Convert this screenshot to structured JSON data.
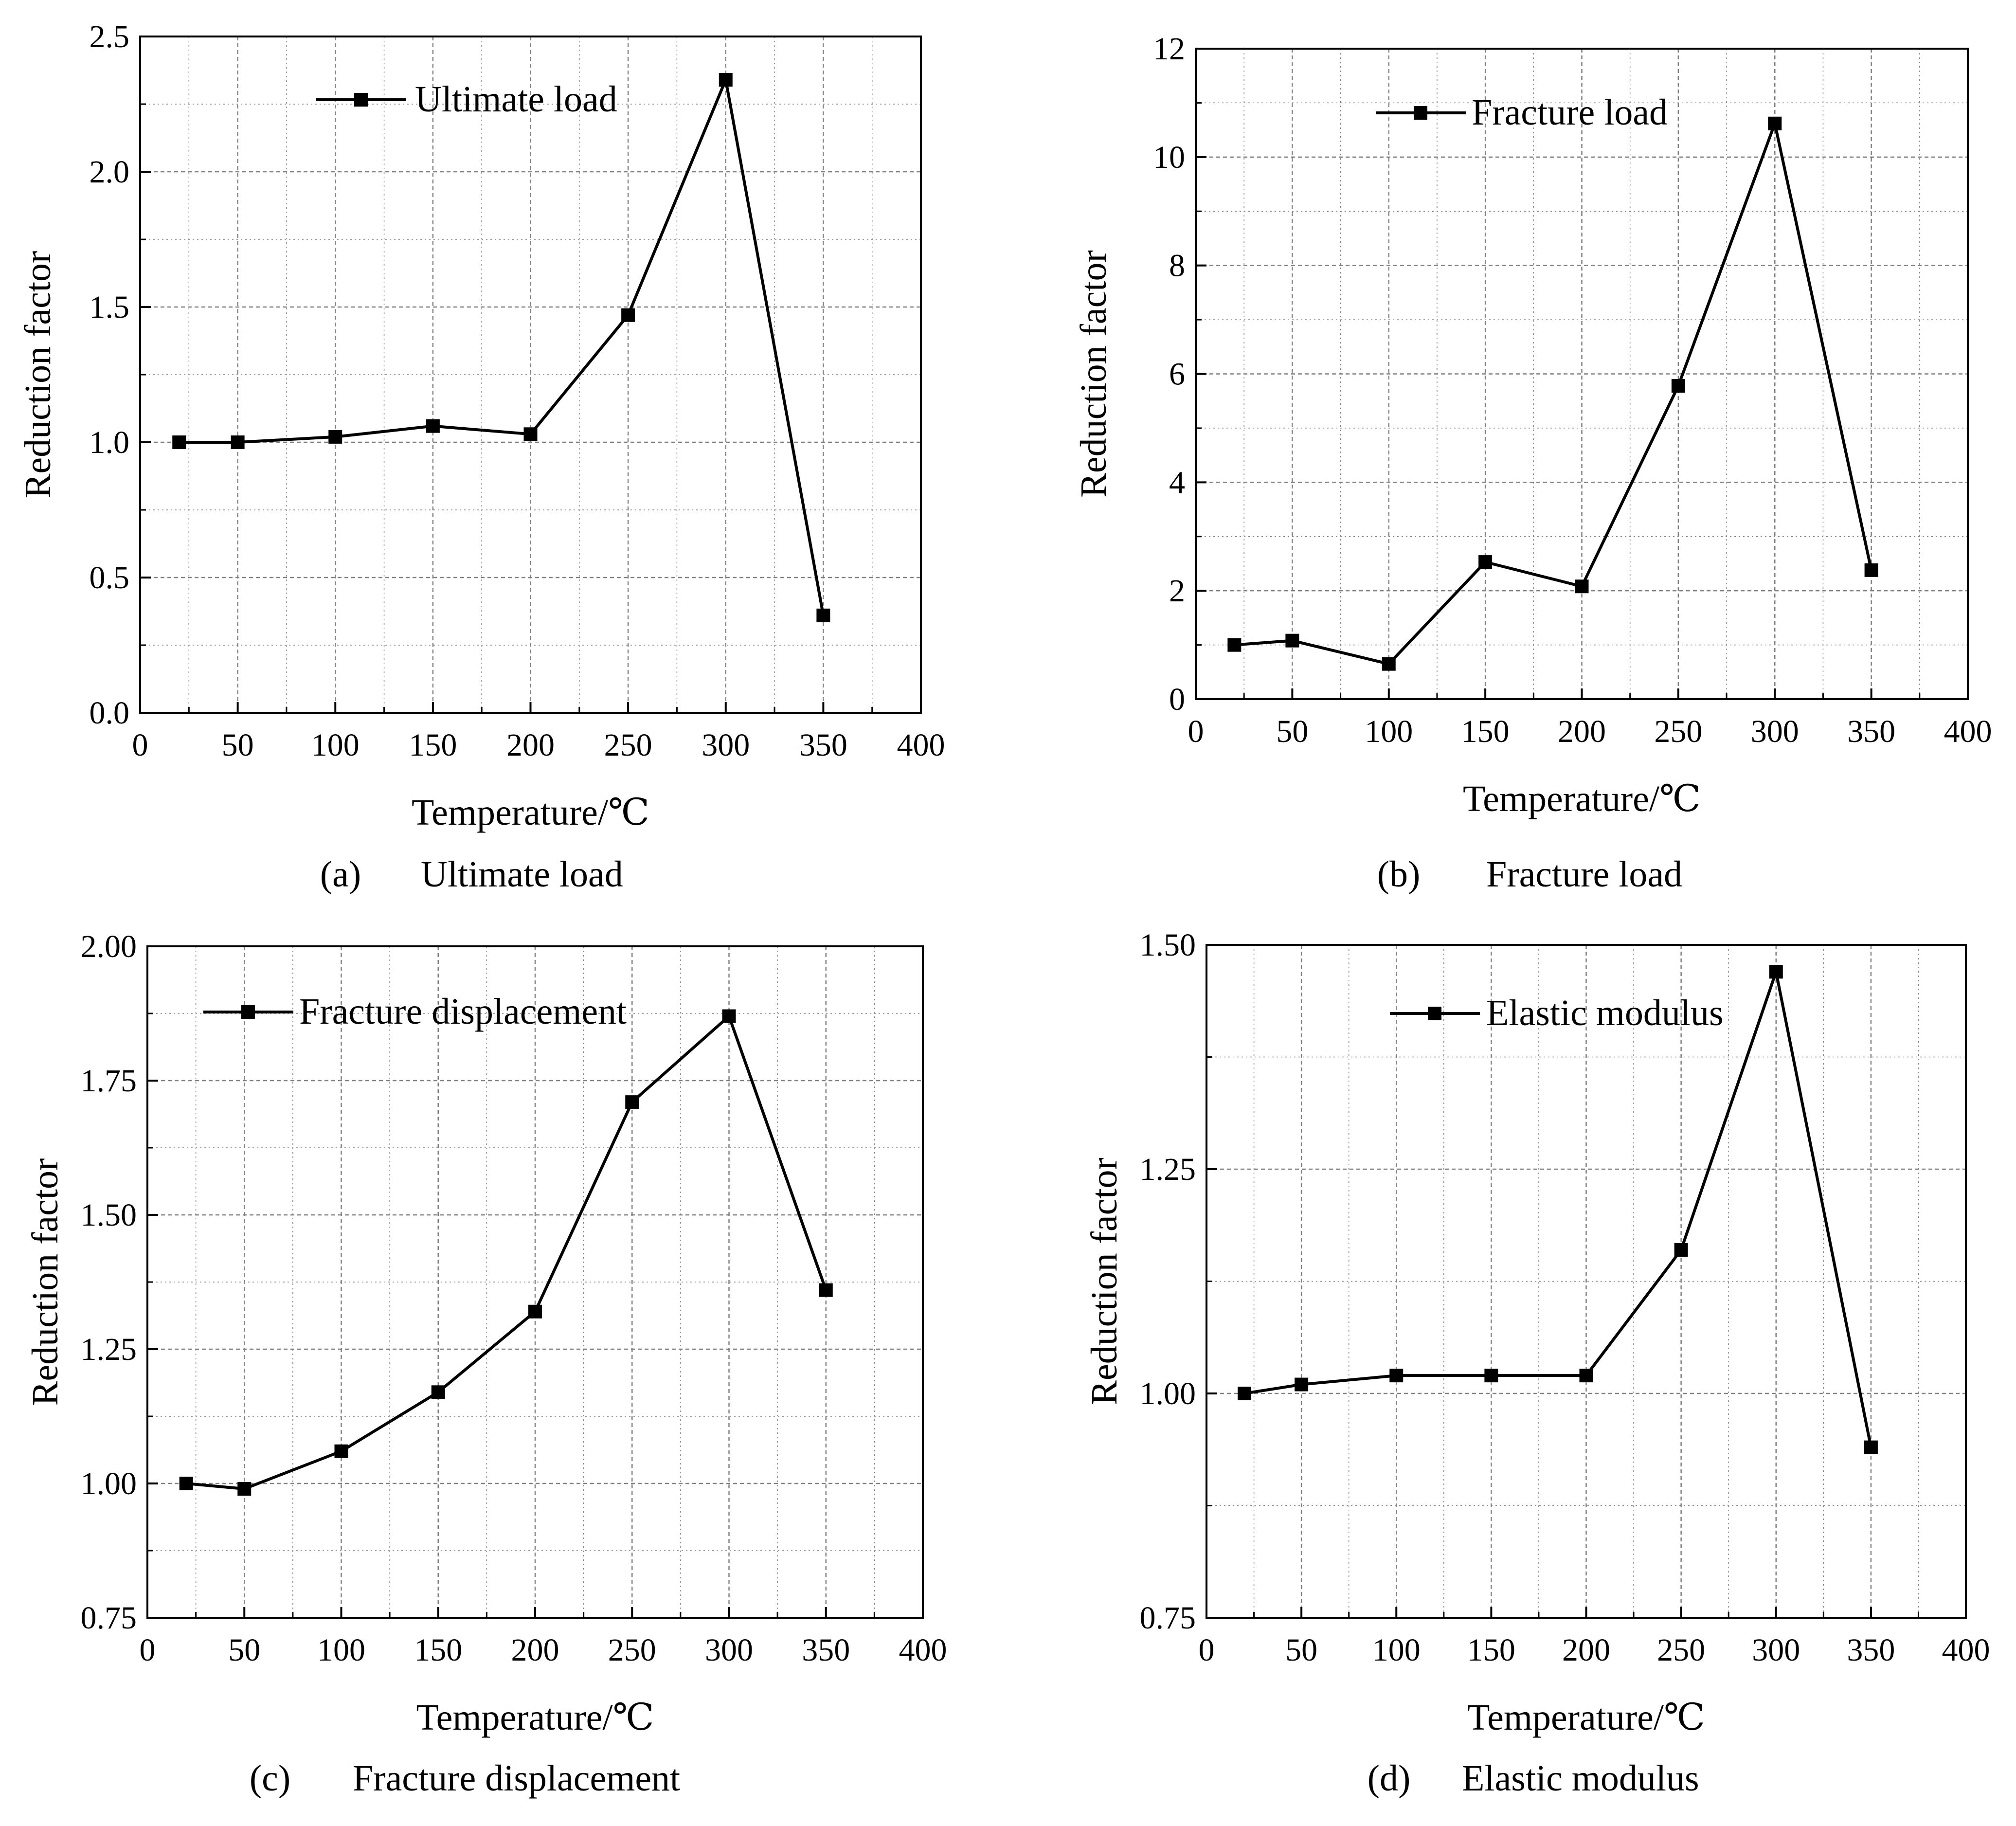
{
  "figure": {
    "colors": {
      "line": "#000000",
      "marker": "#000000",
      "grid": "#808080",
      "background": "#ffffff"
    }
  },
  "chart_data": [
    {
      "id": "a",
      "type": "line",
      "caption_label": "(a)",
      "caption_text": "Ultimate load",
      "xlabel": "Temperature/℃",
      "ylabel": "Reduction factor",
      "xlim": [
        0,
        400
      ],
      "ylim": [
        0,
        2.5
      ],
      "xticks": [
        "0",
        "50",
        "100",
        "150",
        "200",
        "250",
        "300",
        "350",
        "400"
      ],
      "yticks": [
        "0.0",
        "0.5",
        "1.0",
        "1.5",
        "2.0",
        "2.5"
      ],
      "grid": true,
      "legend_position": "top-left",
      "series": [
        {
          "name": "Ultimate load",
          "x": [
            20,
            50,
            100,
            150,
            200,
            250,
            300,
            350
          ],
          "y": [
            1.0,
            1.0,
            1.02,
            1.06,
            1.03,
            1.47,
            2.34,
            0.36
          ]
        }
      ]
    },
    {
      "id": "b",
      "type": "line",
      "caption_label": "(b)",
      "caption_text": "Fracture load",
      "xlabel": "Temperature/℃",
      "ylabel": "Reduction factor",
      "xlim": [
        0,
        400
      ],
      "ylim": [
        0,
        12
      ],
      "xticks": [
        "0",
        "50",
        "100",
        "150",
        "200",
        "250",
        "300",
        "350",
        "400"
      ],
      "yticks": [
        "0",
        "2",
        "4",
        "6",
        "8",
        "10",
        "12"
      ],
      "grid": true,
      "legend_position": "top-left",
      "series": [
        {
          "name": "Fracture load",
          "x": [
            20,
            50,
            100,
            150,
            200,
            250,
            300,
            350
          ],
          "y": [
            1.0,
            1.08,
            0.65,
            2.53,
            2.08,
            5.78,
            10.62,
            2.38
          ]
        }
      ]
    },
    {
      "id": "c",
      "type": "line",
      "caption_label": "(c)",
      "caption_text": "Fracture displacement",
      "xlabel": "Temperature/℃",
      "ylabel": "Reduction factor",
      "xlim": [
        0,
        400
      ],
      "ylim": [
        0.75,
        2.0
      ],
      "xticks": [
        "0",
        "50",
        "100",
        "150",
        "200",
        "250",
        "300",
        "350",
        "400"
      ],
      "yticks": [
        "0.75",
        "1.00",
        "1.25",
        "1.50",
        "1.75",
        "2.00"
      ],
      "grid": true,
      "legend_position": "top-left",
      "series": [
        {
          "name": "Fracture displacement",
          "x": [
            20,
            50,
            100,
            150,
            200,
            250,
            300,
            350
          ],
          "y": [
            1.0,
            0.99,
            1.06,
            1.17,
            1.32,
            1.71,
            1.87,
            1.36
          ]
        }
      ]
    },
    {
      "id": "d",
      "type": "line",
      "caption_label": "(d)",
      "caption_text": "Elastic modulus",
      "xlabel": "Temperature/℃",
      "ylabel": "Reduction factor",
      "xlim": [
        0,
        400
      ],
      "ylim": [
        0.75,
        1.5
      ],
      "xticks": [
        "0",
        "50",
        "100",
        "150",
        "200",
        "250",
        "300",
        "350",
        "400"
      ],
      "yticks": [
        "0.75",
        "1.00",
        "1.25",
        "1.50"
      ],
      "grid": true,
      "legend_position": "top-left",
      "series": [
        {
          "name": "Elastic modulus",
          "x": [
            20,
            50,
            100,
            150,
            200,
            250,
            300,
            350
          ],
          "y": [
            1.0,
            1.01,
            1.02,
            1.02,
            1.02,
            1.16,
            1.47,
            0.94
          ]
        }
      ]
    }
  ]
}
